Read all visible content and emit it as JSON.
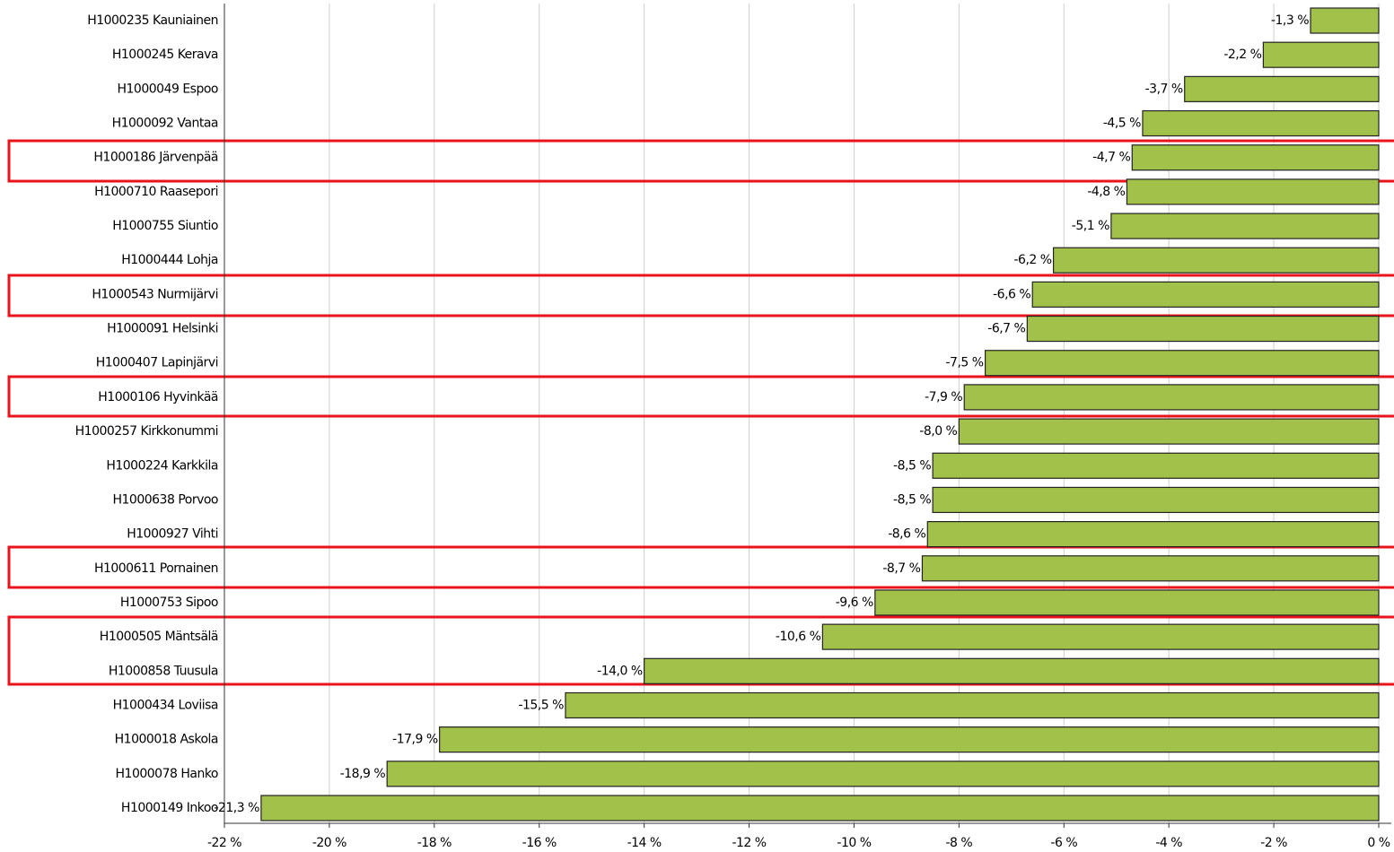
{
  "chart_data": {
    "type": "bar",
    "orientation": "horizontal",
    "categories": [
      "H1000235 Kauniainen",
      "H1000245 Kerava",
      "H1000049 Espoo",
      "H1000092 Vantaa",
      "H1000186 Järvenpää",
      "H1000710 Raasepori",
      "H1000755 Siuntio",
      "H1000444 Lohja",
      "H1000543 Nurmijärvi",
      "H1000091 Helsinki",
      "H1000407 Lapinjärvi",
      "H1000106 Hyvinkää",
      "H1000257 Kirkkonummi",
      "H1000224 Karkkila",
      "H1000638 Porvoo",
      "H1000927 Vihti",
      "H1000611 Pornainen",
      "H1000753 Sipoo",
      "H1000505 Mäntsälä",
      "H1000858 Tuusula",
      "H1000434 Loviisa",
      "H1000018 Askola",
      "H1000078 Hanko",
      "H1000149 Inkoo"
    ],
    "values": [
      -1.3,
      -2.2,
      -3.7,
      -4.5,
      -4.7,
      -4.8,
      -5.1,
      -6.2,
      -6.6,
      -6.7,
      -7.5,
      -7.9,
      -8.0,
      -8.5,
      -8.5,
      -8.6,
      -8.7,
      -9.6,
      -10.6,
      -14.0,
      -15.5,
      -17.9,
      -18.9,
      -21.3
    ],
    "value_labels": [
      "-1,3 %",
      "-2,2 %",
      "-3,7 %",
      "-4,5 %",
      "-4,7 %",
      "-4,8 %",
      "-5,1 %",
      "-6,2 %",
      "-6,6 %",
      "-6,7 %",
      "-7,5 %",
      "-7,9 %",
      "-8,0 %",
      "-8,5 %",
      "-8,5 %",
      "-8,6 %",
      "-8,7 %",
      "-9,6 %",
      "-10,6 %",
      "-14,0 %",
      "-15,5 %",
      "-17,9 %",
      "-18,9 %",
      "-21,3 %"
    ],
    "color": "#a2c14a",
    "xlim": [
      -22,
      0
    ],
    "xticks": [
      {
        "value": -22,
        "label": "-22 %"
      },
      {
        "value": -20,
        "label": "-20 %"
      },
      {
        "value": -18,
        "label": "-18 %"
      },
      {
        "value": -16,
        "label": "-16 %"
      },
      {
        "value": -14,
        "label": "-14 %"
      },
      {
        "value": -12,
        "label": "-12 %"
      },
      {
        "value": -10,
        "label": "-10 %"
      },
      {
        "value": -8,
        "label": "-8 %"
      },
      {
        "value": -6,
        "label": "-6 %"
      },
      {
        "value": -4,
        "label": "-4 %"
      },
      {
        "value": -2,
        "label": "-2 %"
      },
      {
        "value": 0,
        "label": "0 %"
      }
    ],
    "grid": true
  }
}
